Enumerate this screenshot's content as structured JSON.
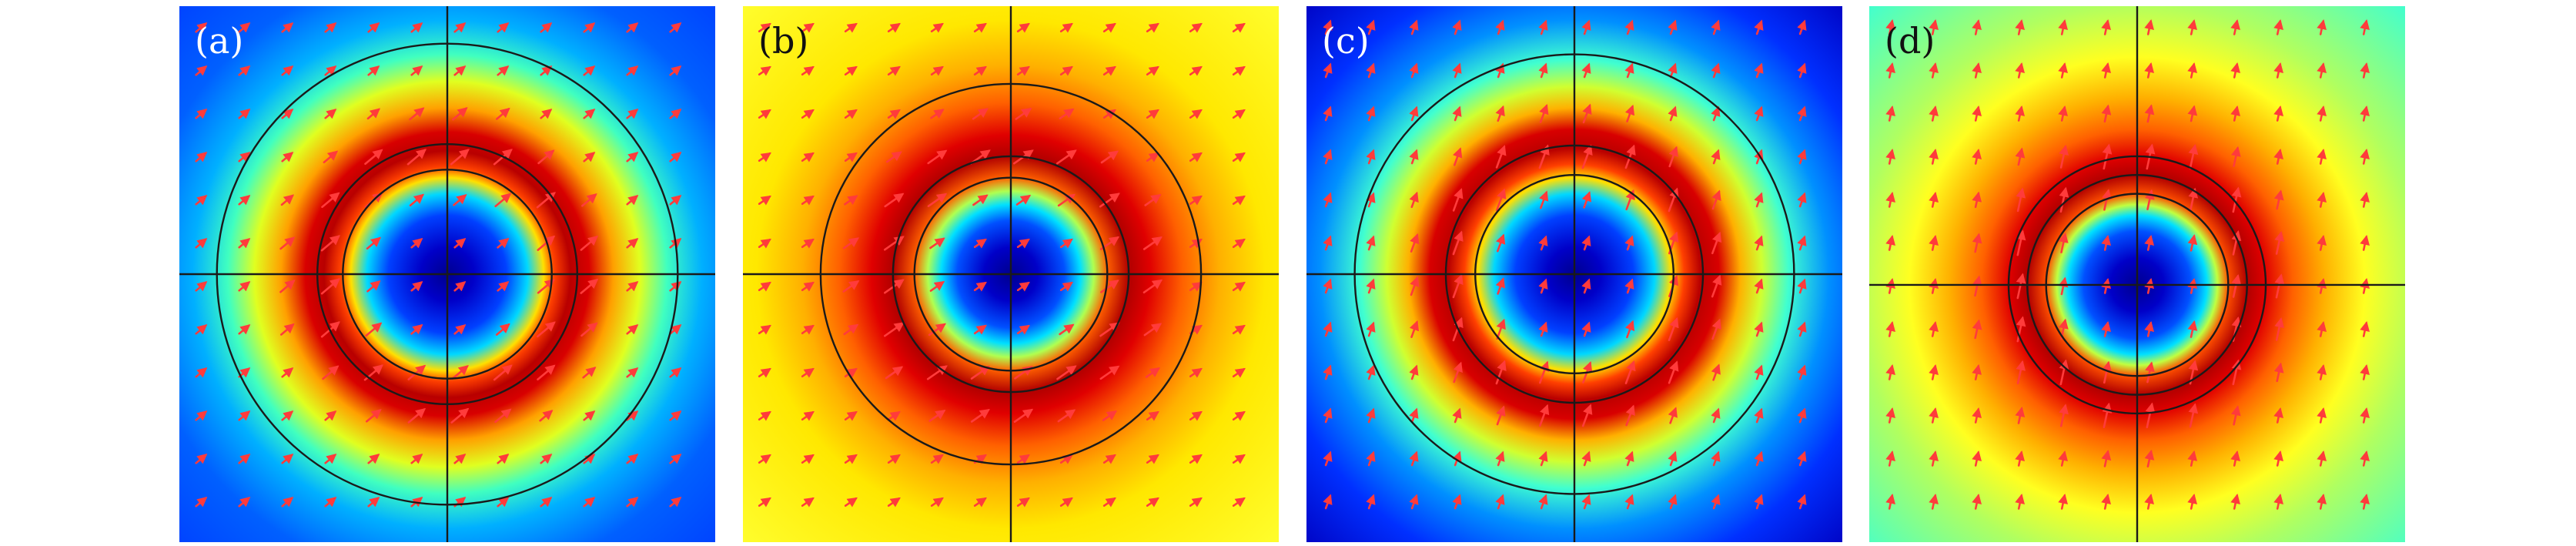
{
  "colors": {
    "jet_blue": "#00008f",
    "jet_cyan": "#00ffff",
    "jet_yellow": "#ffff00",
    "jet_red": "#ff0000",
    "arrow": "#ff3b3b",
    "lines": "#1a1a1a"
  },
  "panels": [
    {
      "label": "(a)",
      "label_color": "#ffffff",
      "colormap_stops": [
        {
          "r": 0.0,
          "color": "#00008f"
        },
        {
          "r": 0.1,
          "color": "#0000c8"
        },
        {
          "r": 0.22,
          "color": "#0040ff"
        },
        {
          "r": 0.3,
          "color": "#00d8ff"
        },
        {
          "r": 0.36,
          "color": "#ffe000"
        },
        {
          "r": 0.4,
          "color": "#ff4000"
        },
        {
          "r": 0.46,
          "color": "#b80000"
        },
        {
          "r": 0.53,
          "color": "#d80000"
        },
        {
          "r": 0.62,
          "color": "#ffa000"
        },
        {
          "r": 0.72,
          "color": "#e0ff20"
        },
        {
          "r": 0.82,
          "color": "#40ffc0"
        },
        {
          "r": 0.95,
          "color": "#00b0ff"
        },
        {
          "r": 1.15,
          "color": "#0060ff"
        },
        {
          "r": 1.45,
          "color": "#0040ff"
        }
      ],
      "circles": [
        0.39,
        0.485,
        0.86
      ],
      "arrow_angle_deg": -40,
      "arrow_scale": 0.85,
      "crosshair_offset": [
        0.0,
        0.0
      ]
    },
    {
      "label": "(b)",
      "label_color": "#111111",
      "colormap_stops": [
        {
          "r": 0.0,
          "color": "#00008f"
        },
        {
          "r": 0.1,
          "color": "#0000c8"
        },
        {
          "r": 0.2,
          "color": "#0050ff"
        },
        {
          "r": 0.26,
          "color": "#00e0ff"
        },
        {
          "r": 0.31,
          "color": "#b0ff50"
        },
        {
          "r": 0.36,
          "color": "#ff6000"
        },
        {
          "r": 0.44,
          "color": "#b00000"
        },
        {
          "r": 0.52,
          "color": "#e00000"
        },
        {
          "r": 0.64,
          "color": "#ff6000"
        },
        {
          "r": 0.78,
          "color": "#ffb000"
        },
        {
          "r": 0.95,
          "color": "#ffe800"
        },
        {
          "r": 1.45,
          "color": "#ffff30"
        }
      ],
      "circles": [
        0.36,
        0.44,
        0.71
      ],
      "arrow_angle_deg": -35,
      "arrow_scale": 0.85,
      "crosshair_offset": [
        0.0,
        0.0
      ]
    },
    {
      "label": "(c)",
      "label_color": "#ffffff",
      "colormap_stops": [
        {
          "r": 0.0,
          "color": "#00008f"
        },
        {
          "r": 0.1,
          "color": "#0000c8"
        },
        {
          "r": 0.22,
          "color": "#0040ff"
        },
        {
          "r": 0.3,
          "color": "#00d8ff"
        },
        {
          "r": 0.36,
          "color": "#ffe000"
        },
        {
          "r": 0.41,
          "color": "#ff4000"
        },
        {
          "r": 0.47,
          "color": "#b80000"
        },
        {
          "r": 0.54,
          "color": "#d80000"
        },
        {
          "r": 0.62,
          "color": "#ffb000"
        },
        {
          "r": 0.7,
          "color": "#d0ff30"
        },
        {
          "r": 0.8,
          "color": "#40ffd0"
        },
        {
          "r": 0.95,
          "color": "#0090ff"
        },
        {
          "r": 1.15,
          "color": "#0030ff"
        },
        {
          "r": 1.45,
          "color": "#0000c0"
        }
      ],
      "circles": [
        0.37,
        0.48,
        0.82
      ],
      "arrow_angle_deg": -70,
      "arrow_scale": 0.9,
      "crosshair_offset": [
        0.0,
        0.0
      ]
    },
    {
      "label": "(d)",
      "label_color": "#111111",
      "colormap_stops": [
        {
          "r": 0.0,
          "color": "#00008f"
        },
        {
          "r": 0.1,
          "color": "#0000c8"
        },
        {
          "r": 0.2,
          "color": "#0050ff"
        },
        {
          "r": 0.26,
          "color": "#00e0ff"
        },
        {
          "r": 0.3,
          "color": "#c0ff40"
        },
        {
          "r": 0.34,
          "color": "#ff5000"
        },
        {
          "r": 0.41,
          "color": "#b00000"
        },
        {
          "r": 0.48,
          "color": "#e00000"
        },
        {
          "r": 0.58,
          "color": "#ff6000"
        },
        {
          "r": 0.7,
          "color": "#ffb000"
        },
        {
          "r": 0.85,
          "color": "#ffff20"
        },
        {
          "r": 1.05,
          "color": "#b0ff60"
        },
        {
          "r": 1.45,
          "color": "#40ffd0"
        }
      ],
      "circles": [
        0.34,
        0.41,
        0.48
      ],
      "arrow_angle_deg": -78,
      "arrow_scale": 0.95,
      "crosshair_offset": [
        0.0,
        0.04
      ]
    }
  ]
}
